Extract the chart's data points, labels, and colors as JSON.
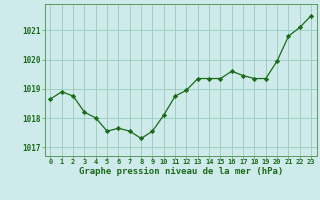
{
  "x": [
    0,
    1,
    2,
    3,
    4,
    5,
    6,
    7,
    8,
    9,
    10,
    11,
    12,
    13,
    14,
    15,
    16,
    17,
    18,
    19,
    20,
    21,
    22,
    23
  ],
  "y": [
    1018.65,
    1018.9,
    1018.75,
    1018.2,
    1018.0,
    1017.55,
    1017.65,
    1017.55,
    1017.3,
    1017.55,
    1018.1,
    1018.75,
    1018.95,
    1019.35,
    1019.35,
    1019.35,
    1019.6,
    1019.45,
    1019.35,
    1019.35,
    1019.95,
    1020.8,
    1021.1,
    1021.5
  ],
  "line_color": "#1a6b1a",
  "marker": "D",
  "marker_size": 2.2,
  "bg_color": "#ceeaea",
  "grid_color": "#99ccbb",
  "xlabel": "Graphe pression niveau de la mer (hPa)",
  "xlabel_color": "#1a6b1a",
  "tick_color": "#1a6b1a",
  "spine_color": "#5a9a5a",
  "ylim": [
    1016.7,
    1021.9
  ],
  "yticks": [
    1017,
    1018,
    1019,
    1020,
    1021
  ],
  "xlim": [
    -0.5,
    23.5
  ],
  "xticks": [
    0,
    1,
    2,
    3,
    4,
    5,
    6,
    7,
    8,
    9,
    10,
    11,
    12,
    13,
    14,
    15,
    16,
    17,
    18,
    19,
    20,
    21,
    22,
    23
  ]
}
